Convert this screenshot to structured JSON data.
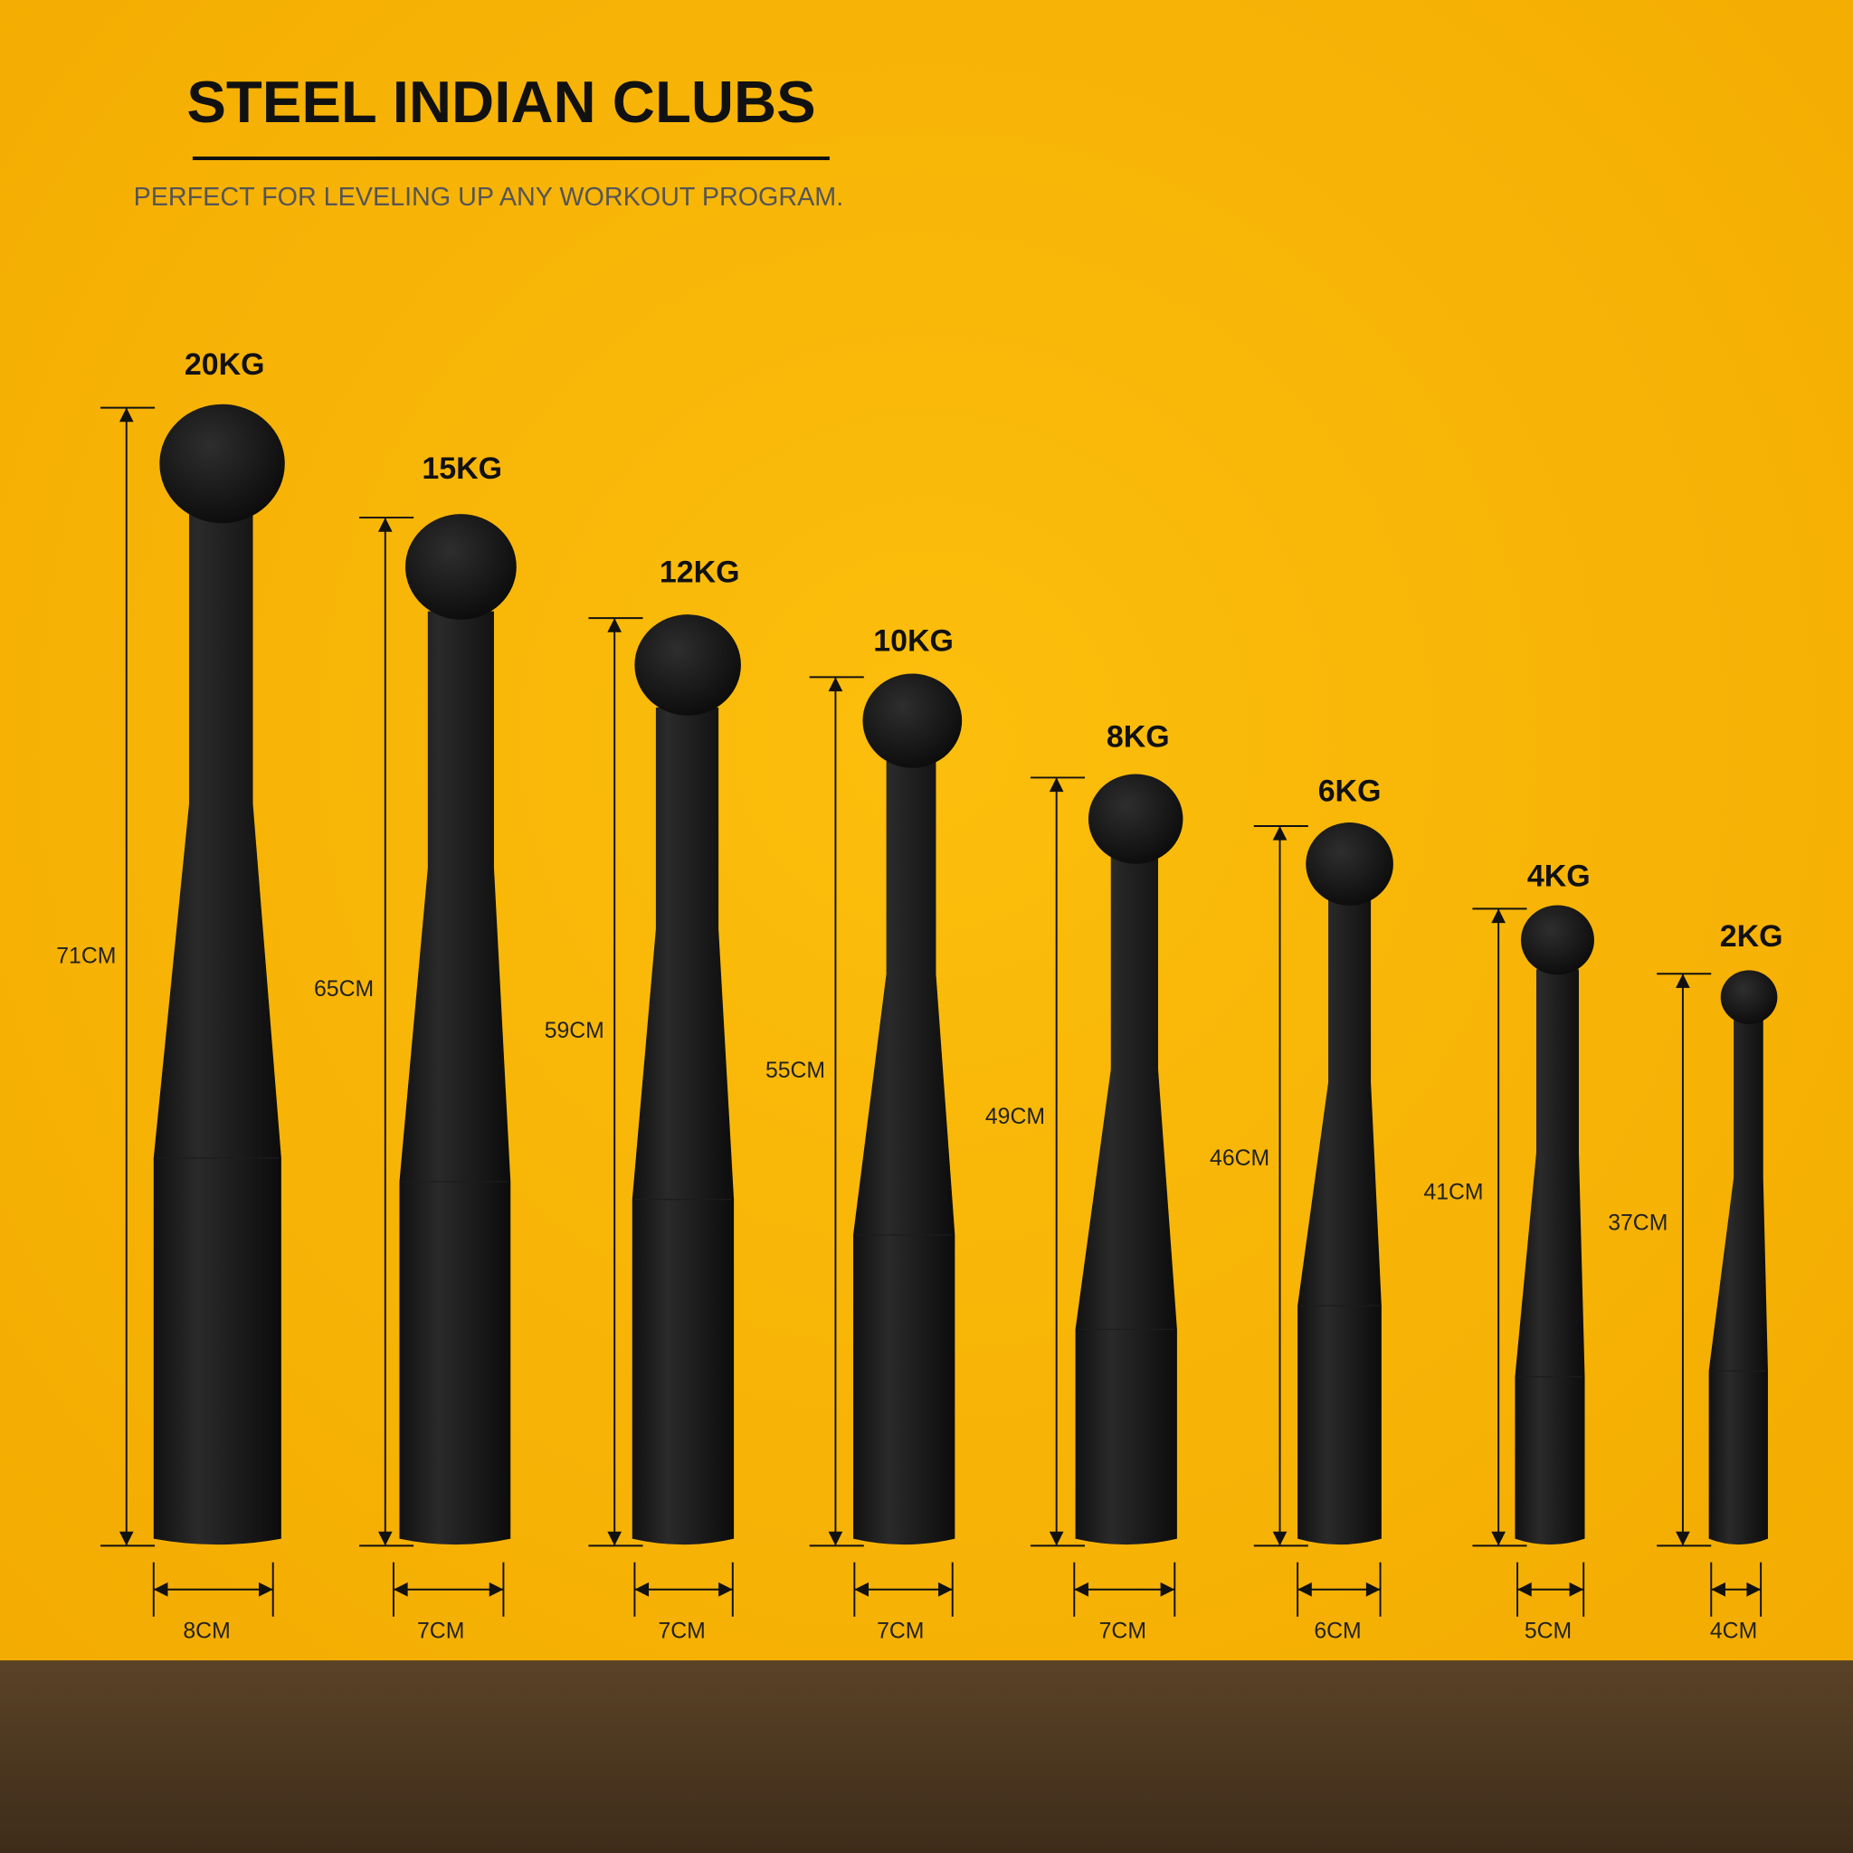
{
  "header": {
    "title": "STEEL INDIAN CLUBS",
    "subtitle": "PERFECT FOR LEVELING UP ANY WORKOUT PROGRAM."
  },
  "clubs": [
    {
      "weight": "20KG",
      "height": "71CM",
      "width": "8CM"
    },
    {
      "weight": "15KG",
      "height": "65CM",
      "width": "7CM"
    },
    {
      "weight": "12KG",
      "height": "59CM",
      "width": "7CM"
    },
    {
      "weight": "10KG",
      "height": "55CM",
      "width": "7CM"
    },
    {
      "weight": "8KG",
      "height": "49CM",
      "width": "7CM"
    },
    {
      "weight": "6KG",
      "height": "46CM",
      "width": "6CM"
    },
    {
      "weight": "4KG",
      "height": "41CM",
      "width": "5CM"
    },
    {
      "weight": "2KG",
      "height": "37CM",
      "width": "4CM"
    }
  ]
}
